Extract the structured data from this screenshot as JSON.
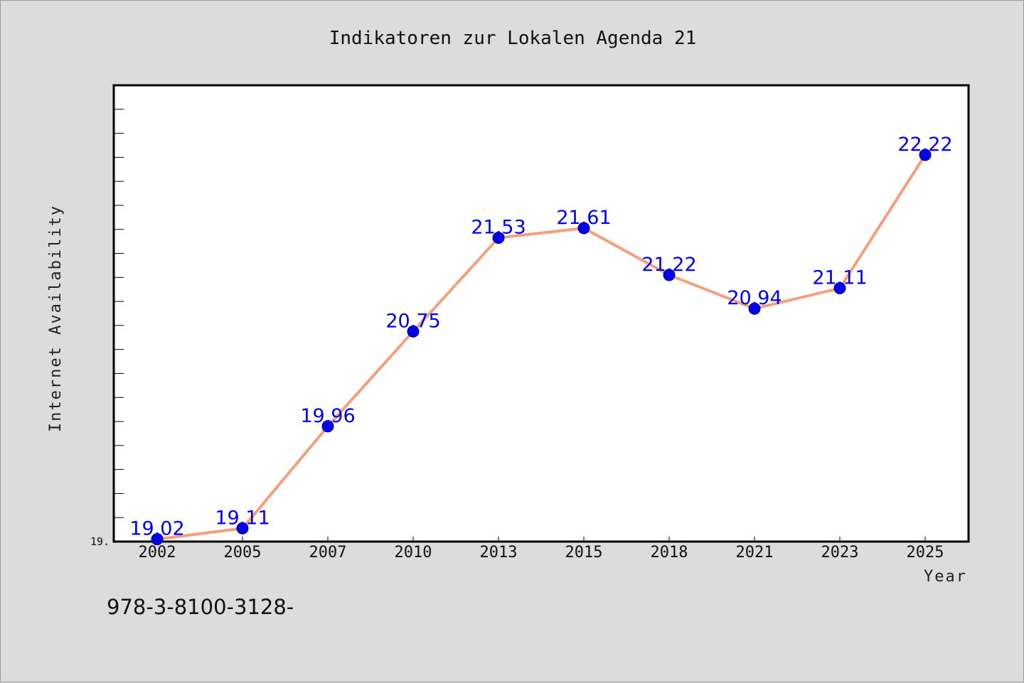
{
  "chart_data": {
    "type": "line",
    "title": "Indikatoren zur Lokalen Agenda 21",
    "xlabel": "Year",
    "ylabel": "Internet Availability",
    "categories": [
      "2002",
      "2005",
      "2007",
      "2010",
      "2013",
      "2015",
      "2018",
      "2021",
      "2023",
      "2025"
    ],
    "series": [
      {
        "values": [
          19.02,
          19.11,
          19.96,
          20.75,
          21.53,
          21.61,
          21.22,
          20.94,
          21.11,
          22.22
        ]
      }
    ],
    "data_labels": [
      "19.02",
      "19.11",
      "19.96",
      "20.75",
      "21.53",
      "21.61",
      "21.22",
      "20.94",
      "21.11",
      "22.22"
    ],
    "ylim": [
      19.0,
      22.8
    ],
    "y_tick_label": "19.",
    "grid": false,
    "legend": "none",
    "colors": {
      "line": "#f4a07e",
      "marker": "#0000ee",
      "data_label": "#0000ee",
      "plot_background": "#ffffff",
      "figure_background": "#dcdcdc"
    }
  },
  "footnote": "978-3-8100-3128-"
}
